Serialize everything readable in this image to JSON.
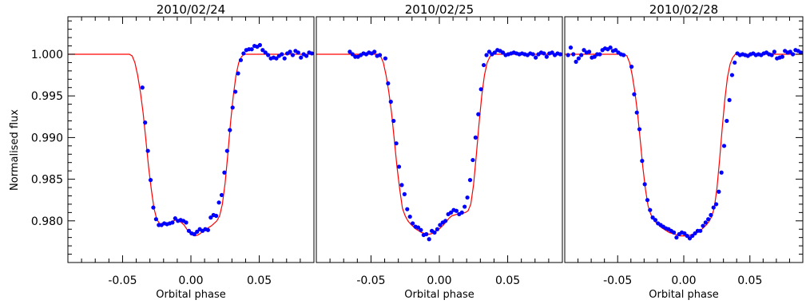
{
  "figure": {
    "ylabel": "Normalised flux",
    "xlabel": "Orbital phase",
    "colors": {
      "points": "#0000ff",
      "model": "#ff0000",
      "axes": "#000000"
    }
  },
  "chart_data": [
    {
      "type": "scatter",
      "title": "2010/02/24",
      "xlabel": "Orbital phase",
      "ylabel": "Normalised flux",
      "xlim": [
        -0.09,
        0.09
      ],
      "ylim": [
        0.975,
        1.0045
      ],
      "xticks": [
        "-0.05",
        "0.00",
        "0.05"
      ],
      "yticks": [
        "1.000",
        "0.995",
        "0.990",
        "0.985",
        "0.980"
      ],
      "grid": false,
      "series": [
        {
          "kind": "points",
          "x": [
            -0.0355,
            -0.0335,
            -0.0315,
            -0.0295,
            -0.0275,
            -0.0255,
            -0.0235,
            -0.0215,
            -0.0195,
            -0.0175,
            -0.0155,
            -0.0135,
            -0.0115,
            -0.0095,
            -0.0075,
            -0.0055,
            -0.0035,
            -0.0015,
            0.0005,
            0.0025,
            0.0045,
            0.0065,
            0.0085,
            0.0105,
            0.0125,
            0.0145,
            0.0165,
            0.0185,
            0.0205,
            0.0225,
            0.0245,
            0.0265,
            0.0285,
            0.0305,
            0.0325,
            0.0345,
            0.0365,
            0.0385,
            0.0405,
            0.0425,
            0.0445,
            0.0465,
            0.0485,
            0.0505,
            0.0525,
            0.0545,
            0.0565,
            0.0585,
            0.0605,
            0.0625,
            0.0645,
            0.0665,
            0.0685,
            0.0705,
            0.0725,
            0.0745,
            0.0765,
            0.0785,
            0.0805,
            0.0825,
            0.0845,
            0.0865,
            0.0885
          ],
          "y": [
            0.996,
            0.9918,
            0.9884,
            0.9849,
            0.9816,
            0.9802,
            0.9795,
            0.9795,
            0.9797,
            0.9796,
            0.9797,
            0.9798,
            0.9803,
            0.98,
            0.9801,
            0.98,
            0.9798,
            0.9788,
            0.9785,
            0.9784,
            0.9787,
            0.979,
            0.9788,
            0.979,
            0.9789,
            0.9804,
            0.9807,
            0.9806,
            0.9822,
            0.9831,
            0.9858,
            0.9884,
            0.9909,
            0.9936,
            0.9955,
            0.9977,
            0.9993,
            1.0001,
            1.0005,
            1.0006,
            1.0006,
            1.001,
            1.0009,
            1.0011,
            1.0005,
            1.0002,
            0.9999,
            0.9995,
            0.9996,
            0.9995,
            0.9998,
            1.0,
            0.9995,
            1.0001,
            1.0003,
            0.9999,
            1.0004,
            1.0002,
            0.9996,
            1.0,
            0.9998,
            1.0002,
            1.0001
          ]
        },
        {
          "kind": "model",
          "x": [
            -0.09,
            -0.045,
            -0.043,
            -0.041,
            -0.039,
            -0.037,
            -0.035,
            -0.033,
            -0.031,
            -0.029,
            -0.027,
            -0.025,
            -0.023,
            -0.021,
            -0.019,
            -0.017,
            -0.015,
            -0.013,
            -0.011,
            -0.009,
            -0.007,
            -0.005,
            -0.003,
            -0.001,
            0.001,
            0.003,
            0.005,
            0.007,
            0.009,
            0.011,
            0.013,
            0.015,
            0.017,
            0.019,
            0.021,
            0.023,
            0.025,
            0.027,
            0.029,
            0.031,
            0.033,
            0.035,
            0.037,
            0.039,
            0.041,
            0.043,
            0.09
          ],
          "y": [
            1.0,
            1.0,
            0.9998,
            0.999,
            0.9975,
            0.9955,
            0.993,
            0.9898,
            0.9865,
            0.9838,
            0.9815,
            0.9802,
            0.9797,
            0.9795,
            0.9796,
            0.9797,
            0.9798,
            0.98,
            0.9801,
            0.98,
            0.9798,
            0.9795,
            0.979,
            0.9786,
            0.9783,
            0.9782,
            0.9783,
            0.9785,
            0.9788,
            0.979,
            0.9792,
            0.9794,
            0.9797,
            0.98,
            0.9806,
            0.982,
            0.9845,
            0.988,
            0.9918,
            0.995,
            0.9975,
            0.999,
            0.9997,
            1.0,
            1.0,
            1.0,
            1.0
          ]
        }
      ]
    },
    {
      "type": "scatter",
      "title": "2010/02/25",
      "xlabel": "Orbital phase",
      "ylabel": "",
      "xlim": [
        -0.09,
        0.09
      ],
      "ylim": [
        0.975,
        1.0045
      ],
      "xticks": [
        "-0.05",
        "0.00",
        "0.05"
      ],
      "yticks": [],
      "grid": false,
      "series": [
        {
          "kind": "points",
          "x": [
            -0.0655,
            -0.0635,
            -0.0615,
            -0.0595,
            -0.0575,
            -0.0555,
            -0.0535,
            -0.0515,
            -0.0495,
            -0.0475,
            -0.0455,
            -0.0435,
            -0.0395,
            -0.0375,
            -0.0355,
            -0.0335,
            -0.0315,
            -0.0295,
            -0.0275,
            -0.0255,
            -0.0235,
            -0.0215,
            -0.0195,
            -0.0175,
            -0.0155,
            -0.0135,
            -0.0115,
            -0.0095,
            -0.0075,
            -0.0055,
            -0.0035,
            -0.0015,
            0.0005,
            0.0025,
            0.0045,
            0.0065,
            0.0085,
            0.0105,
            0.0125,
            0.0145,
            0.0165,
            0.0185,
            0.0205,
            0.0225,
            0.0245,
            0.0265,
            0.0285,
            0.0305,
            0.0325,
            0.0345,
            0.0365,
            0.0385,
            0.0405,
            0.0425,
            0.0445,
            0.0465,
            0.0485,
            0.0505,
            0.0525,
            0.0545,
            0.0565,
            0.0585,
            0.0605,
            0.0625,
            0.0645,
            0.0665,
            0.0685,
            0.0705,
            0.0725,
            0.0745,
            0.0765,
            0.0785,
            0.0805,
            0.0825,
            0.0845,
            0.0865,
            0.0885
          ],
          "y": [
            1.0003,
            1.0,
            0.9997,
            0.9997,
            0.9999,
            1.0001,
            1.0,
            1.0002,
            1.0001,
            1.0003,
            0.9998,
            0.9999,
            0.9995,
            0.9965,
            0.9943,
            0.992,
            0.9893,
            0.9865,
            0.9843,
            0.9832,
            0.9814,
            0.9805,
            0.9797,
            0.9793,
            0.9792,
            0.9789,
            0.9783,
            0.9784,
            0.9778,
            0.9788,
            0.9786,
            0.979,
            0.9795,
            0.9798,
            0.98,
            0.9808,
            0.981,
            0.9813,
            0.9812,
            0.9808,
            0.981,
            0.9817,
            0.9828,
            0.9849,
            0.9873,
            0.99,
            0.9928,
            0.9958,
            0.9987,
            0.9999,
            1.0003,
            1.0,
            1.0002,
            1.0005,
            1.0004,
            1.0002,
            0.9999,
            1.0,
            1.0001,
            1.0002,
            1.0001,
            1.0,
            1.0001,
            1.0,
            0.9999,
            1.0001,
            1.0,
            0.9996,
            1.0,
            1.0002,
            1.0001,
            0.9997,
            1.0001,
            1.0002,
            0.9999,
            1.0001,
            1.0
          ]
        },
        {
          "kind": "model",
          "x": [
            -0.09,
            -0.045,
            -0.043,
            -0.041,
            -0.039,
            -0.037,
            -0.035,
            -0.033,
            -0.031,
            -0.029,
            -0.027,
            -0.025,
            -0.023,
            -0.021,
            -0.019,
            -0.017,
            -0.015,
            -0.013,
            -0.011,
            -0.009,
            -0.007,
            -0.005,
            -0.003,
            -0.001,
            0.001,
            0.003,
            0.005,
            0.007,
            0.009,
            0.011,
            0.013,
            0.015,
            0.017,
            0.019,
            0.021,
            0.023,
            0.025,
            0.027,
            0.029,
            0.031,
            0.033,
            0.035,
            0.037,
            0.039,
            0.041,
            0.043,
            0.09
          ],
          "y": [
            1.0,
            1.0,
            0.9998,
            0.999,
            0.9975,
            0.9955,
            0.993,
            0.9898,
            0.9865,
            0.9838,
            0.9815,
            0.9806,
            0.98,
            0.9796,
            0.9793,
            0.979,
            0.9788,
            0.9786,
            0.9785,
            0.9784,
            0.9784,
            0.9785,
            0.9787,
            0.9789,
            0.9792,
            0.9795,
            0.9799,
            0.9803,
            0.9806,
            0.9807,
            0.9808,
            0.9808,
            0.9809,
            0.981,
            0.9812,
            0.982,
            0.9843,
            0.9878,
            0.9916,
            0.995,
            0.9975,
            0.999,
            0.9997,
            1.0,
            1.0,
            1.0,
            1.0
          ]
        }
      ]
    },
    {
      "type": "scatter",
      "title": "2010/02/28",
      "xlabel": "Orbital phase",
      "ylabel": "",
      "xlim": [
        -0.09,
        0.09
      ],
      "ylim": [
        0.975,
        1.0045
      ],
      "xticks": [
        "-0.05",
        "0.00",
        "0.05"
      ],
      "yticks": [],
      "grid": false,
      "series": [
        {
          "kind": "points",
          "x": [
            -0.0875,
            -0.0855,
            -0.0835,
            -0.0815,
            -0.0795,
            -0.0775,
            -0.0755,
            -0.0735,
            -0.0715,
            -0.0695,
            -0.0675,
            -0.0655,
            -0.0635,
            -0.0615,
            -0.0595,
            -0.0575,
            -0.0555,
            -0.0535,
            -0.0515,
            -0.0495,
            -0.0475,
            -0.0455,
            -0.0395,
            -0.0375,
            -0.0355,
            -0.0335,
            -0.0315,
            -0.0295,
            -0.0275,
            -0.0255,
            -0.0235,
            -0.0215,
            -0.0195,
            -0.0175,
            -0.0155,
            -0.0135,
            -0.0115,
            -0.0095,
            -0.0075,
            -0.0055,
            -0.0035,
            -0.0015,
            0.0005,
            0.0025,
            0.0045,
            0.0065,
            0.0085,
            0.0105,
            0.0125,
            0.0145,
            0.0165,
            0.0185,
            0.0205,
            0.0225,
            0.0245,
            0.0265,
            0.0285,
            0.0305,
            0.0325,
            0.0345,
            0.0365,
            0.0385,
            0.0405,
            0.0425,
            0.0445,
            0.0465,
            0.0485,
            0.0505,
            0.0525,
            0.0545,
            0.0565,
            0.0585,
            0.0605,
            0.0625,
            0.0645,
            0.0665,
            0.0685,
            0.0705,
            0.0725,
            0.0745,
            0.0765,
            0.0785,
            0.0805,
            0.0825,
            0.0845,
            0.0865,
            0.0885
          ],
          "y": [
            0.9999,
            1.0008,
            1.0,
            0.9991,
            0.9995,
            0.9999,
            1.0005,
            1.0002,
            1.0003,
            0.9996,
            0.9997,
            1.0,
            1.0,
            1.0005,
            1.0007,
            1.0006,
            1.0008,
            1.0004,
            1.0005,
            1.0002,
            1.0,
            0.9999,
            0.9985,
            0.9952,
            0.993,
            0.991,
            0.9872,
            0.9844,
            0.9825,
            0.9813,
            0.9804,
            0.9801,
            0.9797,
            0.9795,
            0.9793,
            0.9791,
            0.979,
            0.9788,
            0.9786,
            0.978,
            0.9784,
            0.9786,
            0.9785,
            0.9782,
            0.9779,
            0.9782,
            0.9785,
            0.9788,
            0.9788,
            0.9794,
            0.9798,
            0.9802,
            0.9807,
            0.9816,
            0.982,
            0.9835,
            0.9858,
            0.989,
            0.992,
            0.9945,
            0.9975,
            0.999,
            1.0001,
            0.9999,
            1.0,
            0.9999,
            0.9998,
            1.0,
            1.0001,
            0.9999,
            1.0,
            0.9999,
            1.0001,
            1.0002,
            1.0,
            0.9999,
            1.0003,
            0.9995,
            0.9996,
            0.9997,
            1.0004,
            1.0002,
            1.0003,
            1.0,
            1.0005,
            1.0004,
            1.0002
          ]
        },
        {
          "kind": "model",
          "x": [
            -0.09,
            -0.045,
            -0.043,
            -0.041,
            -0.039,
            -0.037,
            -0.035,
            -0.033,
            -0.031,
            -0.029,
            -0.027,
            -0.025,
            -0.023,
            -0.021,
            -0.019,
            -0.017,
            -0.015,
            -0.013,
            -0.011,
            -0.009,
            -0.007,
            -0.005,
            -0.003,
            -0.001,
            0.001,
            0.003,
            0.005,
            0.007,
            0.009,
            0.011,
            0.013,
            0.015,
            0.017,
            0.019,
            0.021,
            0.023,
            0.025,
            0.027,
            0.029,
            0.031,
            0.033,
            0.035,
            0.037,
            0.039,
            0.041,
            0.043,
            0.09
          ],
          "y": [
            1.0,
            1.0,
            0.9998,
            0.999,
            0.9975,
            0.9955,
            0.993,
            0.9898,
            0.9865,
            0.9838,
            0.9818,
            0.9808,
            0.9802,
            0.9798,
            0.9795,
            0.9792,
            0.979,
            0.9788,
            0.9786,
            0.9785,
            0.9784,
            0.9783,
            0.9782,
            0.9782,
            0.9782,
            0.9782,
            0.9783,
            0.9784,
            0.9785,
            0.9787,
            0.9789,
            0.9792,
            0.9795,
            0.9799,
            0.9805,
            0.9815,
            0.9838,
            0.9872,
            0.991,
            0.9945,
            0.9972,
            0.9988,
            0.9996,
            1.0,
            1.0,
            1.0,
            1.0
          ]
        }
      ]
    }
  ]
}
